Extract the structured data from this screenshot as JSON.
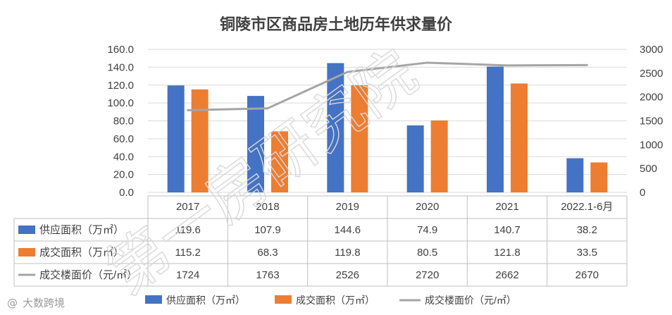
{
  "chart_data": {
    "type": "bar",
    "title": "铜陵市区商品房土地历年供求量价",
    "categories": [
      "2017",
      "2018",
      "2019",
      "2020",
      "2021",
      "2022.1-6月"
    ],
    "series": [
      {
        "name": "供应面积（万㎡）",
        "kind": "bar",
        "axis": "left",
        "color": "#4472C4",
        "values": [
          119.6,
          107.9,
          144.6,
          74.9,
          140.7,
          38.2
        ],
        "labels": [
          "119.6",
          "107.9",
          "144.6",
          "74.9",
          "140.7",
          "38.2"
        ]
      },
      {
        "name": "成交面积（万㎡）",
        "kind": "bar",
        "axis": "left",
        "color": "#ED7D31",
        "values": [
          115.2,
          68.3,
          119.8,
          80.5,
          121.8,
          33.5
        ],
        "labels": [
          "115.2",
          "68.3",
          "119.8",
          "80.5",
          "121.8",
          "33.5"
        ]
      },
      {
        "name": "成交楼面价（元/㎡）",
        "kind": "line",
        "axis": "right",
        "color": "#A5A5A5",
        "values": [
          1724,
          1763,
          2526,
          2720,
          2662,
          2670
        ],
        "labels": [
          "1724",
          "1763",
          "2526",
          "2720",
          "2662",
          "2670"
        ]
      }
    ],
    "y_left": {
      "min": 0,
      "max": 160,
      "ticks": [
        "0.0",
        "20.0",
        "40.0",
        "60.0",
        "80.0",
        "100.0",
        "120.0",
        "140.0",
        "160.0"
      ]
    },
    "y_right": {
      "min": 0,
      "max": 3000,
      "ticks": [
        "0",
        "500",
        "1000",
        "1500",
        "2000",
        "2500",
        "3000"
      ]
    },
    "grid": true,
    "legend": "bottom",
    "data_table": true
  },
  "watermark": {
    "text": "第一房研究院",
    "brand": "大数跨境",
    "brand_logo": "@"
  }
}
